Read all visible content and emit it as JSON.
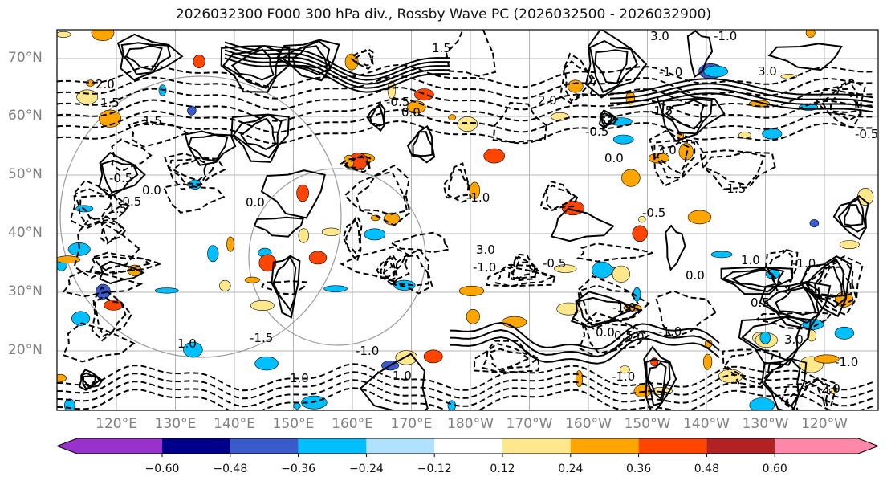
{
  "title": "2026032300 F000 300 hPa div., Rossby Wave PC (2026032500 - 2026032900)",
  "lat_labels": [
    "70°N",
    "60°N",
    "50°N",
    "40°N",
    "30°N",
    "20°N"
  ],
  "lon_labels": [
    "120°E",
    "130°E",
    "140°E",
    "150°E",
    "160°E",
    "170°E",
    "180°W",
    "170°W",
    "160°W",
    "150°W",
    "140°W",
    "130°W",
    "120°W"
  ],
  "colorbar": {
    "ticks": [
      "−0.60",
      "−0.48",
      "−0.36",
      "−0.24",
      "−0.12",
      "0.12",
      "0.24",
      "0.36",
      "0.48",
      "0.60"
    ],
    "colors": [
      "#9932cc",
      "#00008b",
      "#3a5bcc",
      "#00bfff",
      "#b0e2ff",
      "#ffffff",
      "#ffe88c",
      "#ffa500",
      "#ff4500",
      "#b22222",
      "#ff88aa"
    ]
  },
  "contour_labels": [
    "-0.5",
    "1.0",
    "0.5",
    "-1.5",
    "3.0",
    "1.5",
    "-1.0",
    "2.0",
    "0.0"
  ]
}
